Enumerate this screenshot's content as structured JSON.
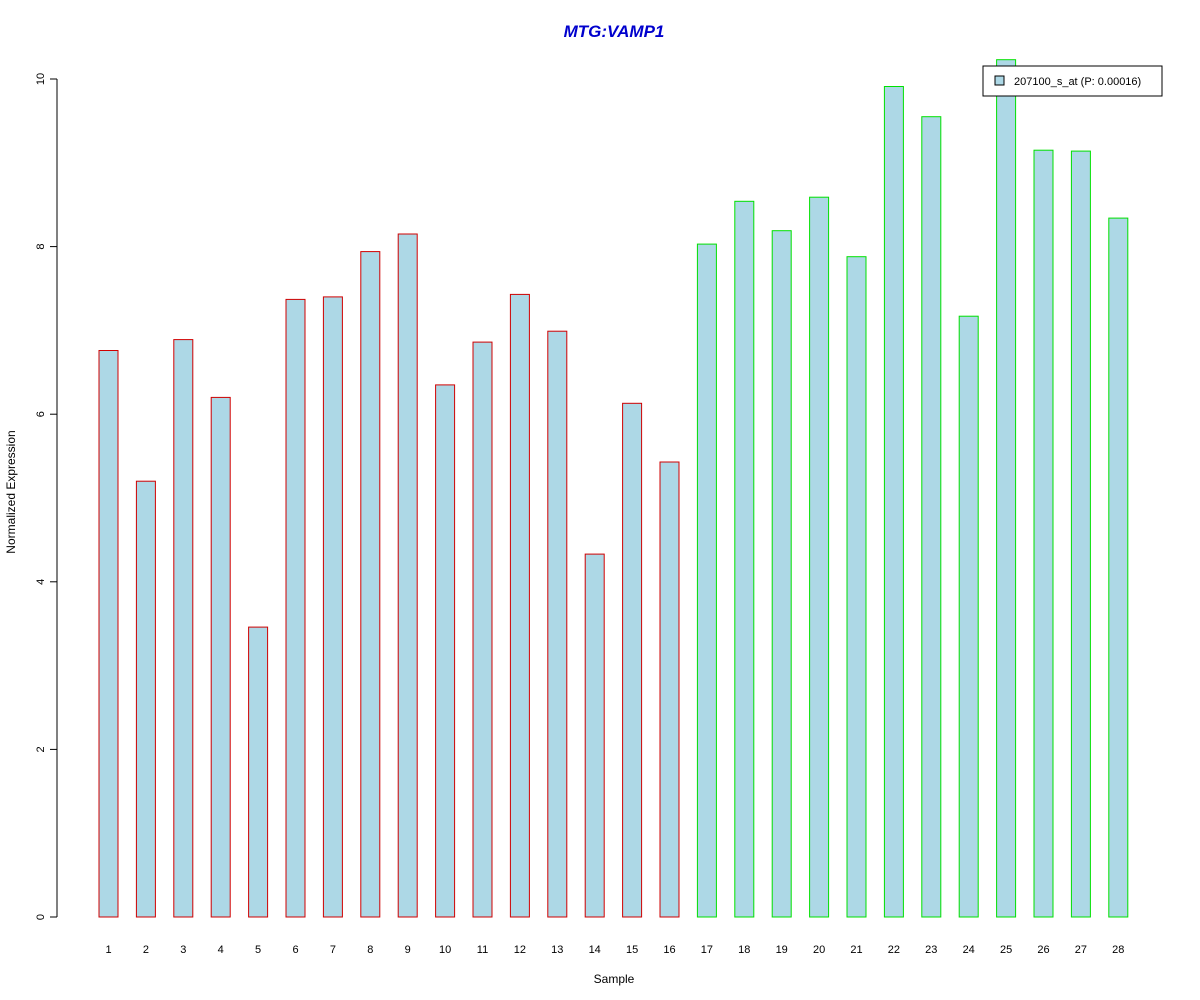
{
  "chart_data": {
    "type": "bar",
    "title": "MTG:VAMP1",
    "xlabel": "Sample",
    "ylabel": "Normalized Expression",
    "ylim": [
      0,
      10
    ],
    "yticks": [
      0,
      2,
      4,
      6,
      8,
      10
    ],
    "categories": [
      "1",
      "2",
      "3",
      "4",
      "5",
      "6",
      "7",
      "8",
      "9",
      "10",
      "11",
      "12",
      "13",
      "14",
      "15",
      "16",
      "17",
      "18",
      "19",
      "20",
      "21",
      "22",
      "23",
      "24",
      "25",
      "26",
      "27",
      "28"
    ],
    "series": [
      {
        "name": "207100_s_at (P: 0.00016)",
        "values": [
          6.76,
          5.2,
          6.89,
          6.2,
          3.46,
          7.37,
          7.4,
          7.94,
          8.15,
          6.35,
          6.86,
          7.43,
          6.99,
          4.33,
          6.13,
          5.43,
          8.03,
          8.54,
          8.19,
          8.59,
          7.88,
          9.91,
          9.55,
          7.17,
          10.23,
          9.15,
          9.14,
          8.34
        ]
      }
    ],
    "group_colors": [
      "#d00000",
      "#d00000",
      "#d00000",
      "#d00000",
      "#d00000",
      "#d00000",
      "#d00000",
      "#d00000",
      "#d00000",
      "#d00000",
      "#d00000",
      "#d00000",
      "#d00000",
      "#d00000",
      "#d00000",
      "#d00000",
      "#00e000",
      "#00e000",
      "#00e000",
      "#00e000",
      "#00e000",
      "#00e000",
      "#00e000",
      "#00e000",
      "#00e000",
      "#00e000",
      "#00e000",
      "#00e000"
    ],
    "bar_fill": "#add8e6",
    "title_color": "#0000cd",
    "legend_position": "top-right",
    "grid": false
  }
}
